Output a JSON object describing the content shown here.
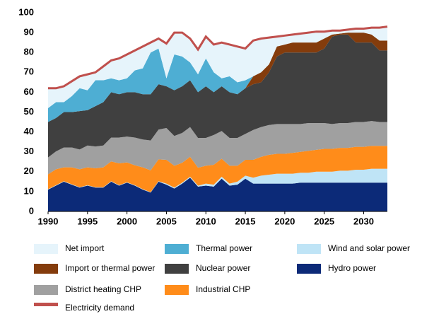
{
  "chart_data": {
    "type": "stacked-area",
    "x": [
      1990,
      1991,
      1992,
      1993,
      1994,
      1995,
      1996,
      1997,
      1998,
      1999,
      2000,
      2001,
      2002,
      2003,
      2004,
      2005,
      2006,
      2007,
      2008,
      2009,
      2010,
      2011,
      2012,
      2013,
      2014,
      2015,
      2016,
      2017,
      2018,
      2019,
      2020,
      2021,
      2022,
      2023,
      2024,
      2025,
      2026,
      2027,
      2028,
      2029,
      2030,
      2031,
      2032,
      2033
    ],
    "xlim": [
      1990,
      2033
    ],
    "xticks": [
      1990,
      1995,
      2000,
      2005,
      2010,
      2015,
      2020,
      2025,
      2030
    ],
    "ylim": [
      0,
      100
    ],
    "yticks": [
      0,
      10,
      20,
      30,
      40,
      50,
      60,
      70,
      80,
      90,
      100
    ],
    "series": [
      {
        "name": "Hydro power",
        "color": "#0c2a78",
        "values": [
          11,
          13,
          15,
          13.5,
          12,
          13,
          12,
          12,
          15,
          13,
          14.5,
          13,
          11,
          9.5,
          15,
          13.5,
          11.5,
          14,
          17,
          12.5,
          13,
          12.5,
          16.5,
          13,
          13.5,
          16.5,
          14,
          14,
          14,
          14,
          14,
          14,
          14.5,
          14.5,
          14.5,
          14.5,
          14.5,
          14.5,
          14.5,
          14.5,
          14.5,
          14.5,
          14.5,
          14.5
        ]
      },
      {
        "name": "Wind and solar power",
        "color": "#bfe4f6",
        "values": [
          0.2,
          0.2,
          0.2,
          0.2,
          0.2,
          0.2,
          0.2,
          0.2,
          0.2,
          0.2,
          0.2,
          0.2,
          0.2,
          0.2,
          0.2,
          0.5,
          0.5,
          0.5,
          0.5,
          0.5,
          1,
          1,
          1,
          1,
          1.5,
          1.5,
          3,
          4,
          4.5,
          5,
          5,
          5,
          5,
          5,
          5.5,
          5.5,
          5.5,
          6,
          6,
          6.5,
          6.5,
          7,
          7,
          7
        ]
      },
      {
        "name": "Industrial CHP",
        "color": "#ff8c1a",
        "values": [
          7.5,
          8,
          7,
          8.5,
          9,
          9,
          9.5,
          10,
          10,
          11,
          10,
          10,
          11,
          11,
          11,
          12,
          11,
          10,
          10,
          9,
          9,
          10,
          9,
          9,
          8,
          8,
          9,
          9.5,
          10,
          10,
          10,
          10.5,
          10.5,
          11,
          11,
          11.5,
          11.5,
          11.5,
          11.5,
          11.5,
          11.5,
          11.5,
          11.5,
          11.5
        ]
      },
      {
        "name": "District heating CHP",
        "color": "#a0a0a0",
        "values": [
          8.5,
          9,
          10,
          10,
          10,
          11,
          11,
          11,
          12,
          13,
          13,
          14,
          14,
          15,
          15,
          16,
          15,
          15,
          15,
          15,
          14,
          15,
          14,
          14,
          14,
          13,
          15,
          15,
          15,
          15,
          15,
          14.5,
          14,
          14,
          13.5,
          13,
          12.5,
          12.5,
          12.5,
          12.5,
          12.5,
          12.5,
          12,
          12
        ]
      },
      {
        "name": "Nuclear power",
        "color": "#404040",
        "values": [
          17.8,
          16.8,
          17.8,
          17.8,
          19.3,
          17.8,
          20.3,
          21.8,
          22.8,
          21.8,
          22.3,
          22.8,
          22.8,
          23.3,
          22.8,
          21,
          23,
          23.5,
          23.5,
          23,
          26,
          21.5,
          22.5,
          23,
          22,
          23,
          23,
          22.5,
          26.5,
          34,
          36,
          36,
          36,
          35.5,
          35.5,
          37.5,
          44,
          44.5,
          44.5,
          40,
          40,
          39.5,
          36,
          36
        ]
      },
      {
        "name": "Import or thermal power",
        "color": "#843c0c",
        "values": [
          0,
          0,
          0,
          0,
          0,
          0,
          0,
          0,
          0,
          0,
          0,
          0,
          0,
          0,
          0,
          0,
          0,
          0,
          0,
          0,
          0,
          0,
          0,
          0,
          0,
          0,
          4,
          5,
          4,
          5,
          4,
          5,
          5,
          5,
          5,
          5,
          1,
          0.5,
          1,
          5,
          5,
          4,
          5,
          5
        ]
      },
      {
        "name": "Thermal power",
        "color": "#4eaed3",
        "values": [
          7,
          8,
          5,
          8,
          11.5,
          10,
          13,
          11,
          7,
          7,
          7,
          11,
          13,
          21,
          18,
          4,
          18,
          15,
          9,
          9,
          14,
          10,
          4,
          8,
          6,
          4,
          0,
          0,
          0,
          0,
          0,
          0,
          0,
          0,
          0,
          0,
          0,
          0,
          0,
          0,
          0,
          0,
          0,
          0
        ]
      },
      {
        "name": "Net import",
        "color": "#e6f4fb",
        "values": [
          10,
          7,
          8,
          7.5,
          6,
          8,
          4,
          7,
          9,
          11,
          12,
          10,
          11,
          5,
          5,
          17.5,
          11,
          12,
          12,
          12.5,
          11,
          14,
          18,
          16,
          18,
          16,
          18,
          17,
          13.5,
          5,
          4.5,
          4,
          4.5,
          5,
          5.5,
          3.5,
          2,
          1.5,
          1.5,
          2,
          2,
          3.5,
          6.5,
          7
        ]
      }
    ],
    "lines": [
      {
        "name": "Electricity demand",
        "color": "#c0504d",
        "values": [
          62,
          62,
          63,
          65.5,
          68,
          69,
          70,
          73,
          76,
          77,
          79,
          81,
          83,
          85,
          87,
          84.5,
          90,
          90,
          87,
          81.5,
          88,
          84,
          85,
          84,
          83,
          82,
          86,
          87,
          87.5,
          88,
          88.5,
          89,
          89.5,
          90,
          90.5,
          90.5,
          91,
          91,
          91.5,
          92,
          92,
          92.5,
          92.5,
          93
        ]
      }
    ]
  }
}
